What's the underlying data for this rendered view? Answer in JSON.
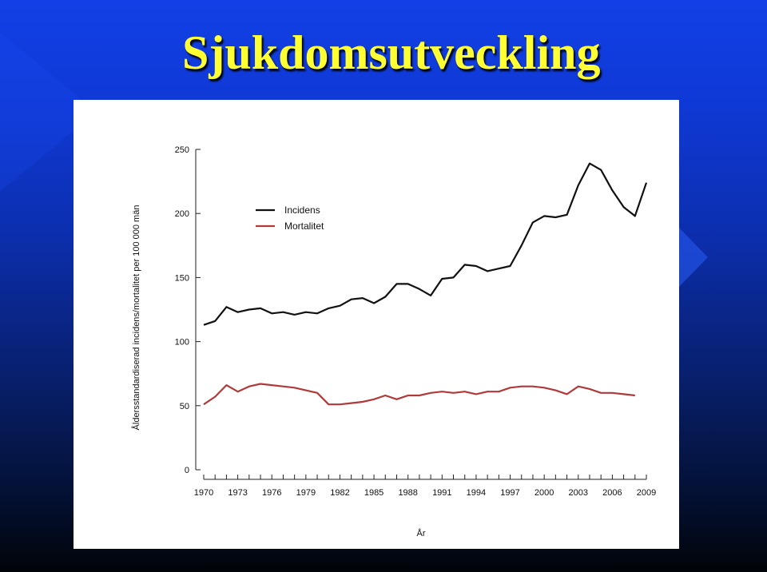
{
  "slide": {
    "title": "Sjukdomsutveckling"
  },
  "colors": {
    "background_top": "#1240e6",
    "background_bottom": "#010408",
    "title": "#ffff33",
    "incidens": "#111111",
    "mortalitet": "#b03a3a"
  },
  "chart_data": {
    "type": "line",
    "xlabel": "År",
    "ylabel": "Åldersstandardiserad incidens/mortalitet per 100 000 män",
    "xlim": [
      1970,
      2009
    ],
    "ylim": [
      0,
      250
    ],
    "yticks": [
      0,
      50,
      100,
      150,
      200,
      250
    ],
    "xtick_labels": [
      "1970",
      "1973",
      "1976",
      "1979",
      "1982",
      "1985",
      "1988",
      "1991",
      "1994",
      "1997",
      "2000",
      "2003",
      "2006",
      "2009"
    ],
    "grid": false,
    "legend_position": "top-left",
    "x": [
      1970,
      1971,
      1972,
      1973,
      1974,
      1975,
      1976,
      1977,
      1978,
      1979,
      1980,
      1981,
      1982,
      1983,
      1984,
      1985,
      1986,
      1987,
      1988,
      1989,
      1990,
      1991,
      1992,
      1993,
      1994,
      1995,
      1996,
      1997,
      1998,
      1999,
      2000,
      2001,
      2002,
      2003,
      2004,
      2005,
      2006,
      2007,
      2008,
      2009
    ],
    "series": [
      {
        "name": "Incidens",
        "color": "#111111",
        "values": [
          113,
          116,
          127,
          123,
          125,
          126,
          122,
          123,
          121,
          123,
          122,
          126,
          128,
          133,
          134,
          130,
          135,
          145,
          145,
          141,
          136,
          149,
          150,
          160,
          159,
          155,
          157,
          159,
          175,
          193,
          198,
          197,
          199,
          222,
          239,
          234,
          218,
          205,
          198,
          224
        ]
      },
      {
        "name": "Mortalitet",
        "color": "#b03a3a",
        "values": [
          51,
          57,
          66,
          61,
          65,
          67,
          66,
          65,
          64,
          62,
          60,
          51,
          51,
          52,
          53,
          55,
          58,
          55,
          58,
          58,
          60,
          61,
          60,
          61,
          59,
          61,
          61,
          64,
          65,
          65,
          64,
          62,
          59,
          65,
          63,
          60,
          60,
          59,
          58,
          null
        ]
      }
    ]
  }
}
